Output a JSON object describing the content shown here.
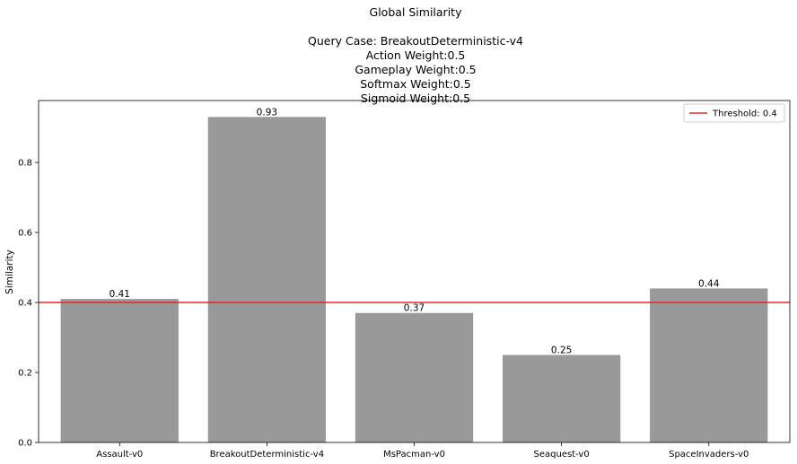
{
  "chart_data": {
    "type": "bar",
    "title": "Global Similarity",
    "subtitle_lines": [
      "Query Case: BreakoutDeterministic-v4",
      "Action Weight:0.5",
      "Gameplay Weight:0.5",
      "Softmax Weight:0.5",
      "Sigmoid Weight:0.5"
    ],
    "categories": [
      "Assault-v0",
      "BreakoutDeterministic-v4",
      "MsPacman-v0",
      "Seaquest-v0",
      "SpaceInvaders-v0"
    ],
    "values": [
      0.41,
      0.93,
      0.37,
      0.25,
      0.44
    ],
    "data_labels": [
      "0.41",
      "0.93",
      "0.37",
      "0.25",
      "0.44"
    ],
    "xlabel": "",
    "ylabel": "Similarity",
    "ylim": [
      0,
      0.977
    ],
    "yticks": [
      0.0,
      0.2,
      0.4,
      0.6,
      0.8
    ],
    "ytick_labels": [
      "0.0",
      "0.2",
      "0.4",
      "0.6",
      "0.8"
    ],
    "bar_color": "#999999",
    "threshold": {
      "value": 0.4,
      "label": "Threshold: 0.4",
      "color": "#e8262a"
    },
    "legend_position": "top-right",
    "grid": false
  }
}
